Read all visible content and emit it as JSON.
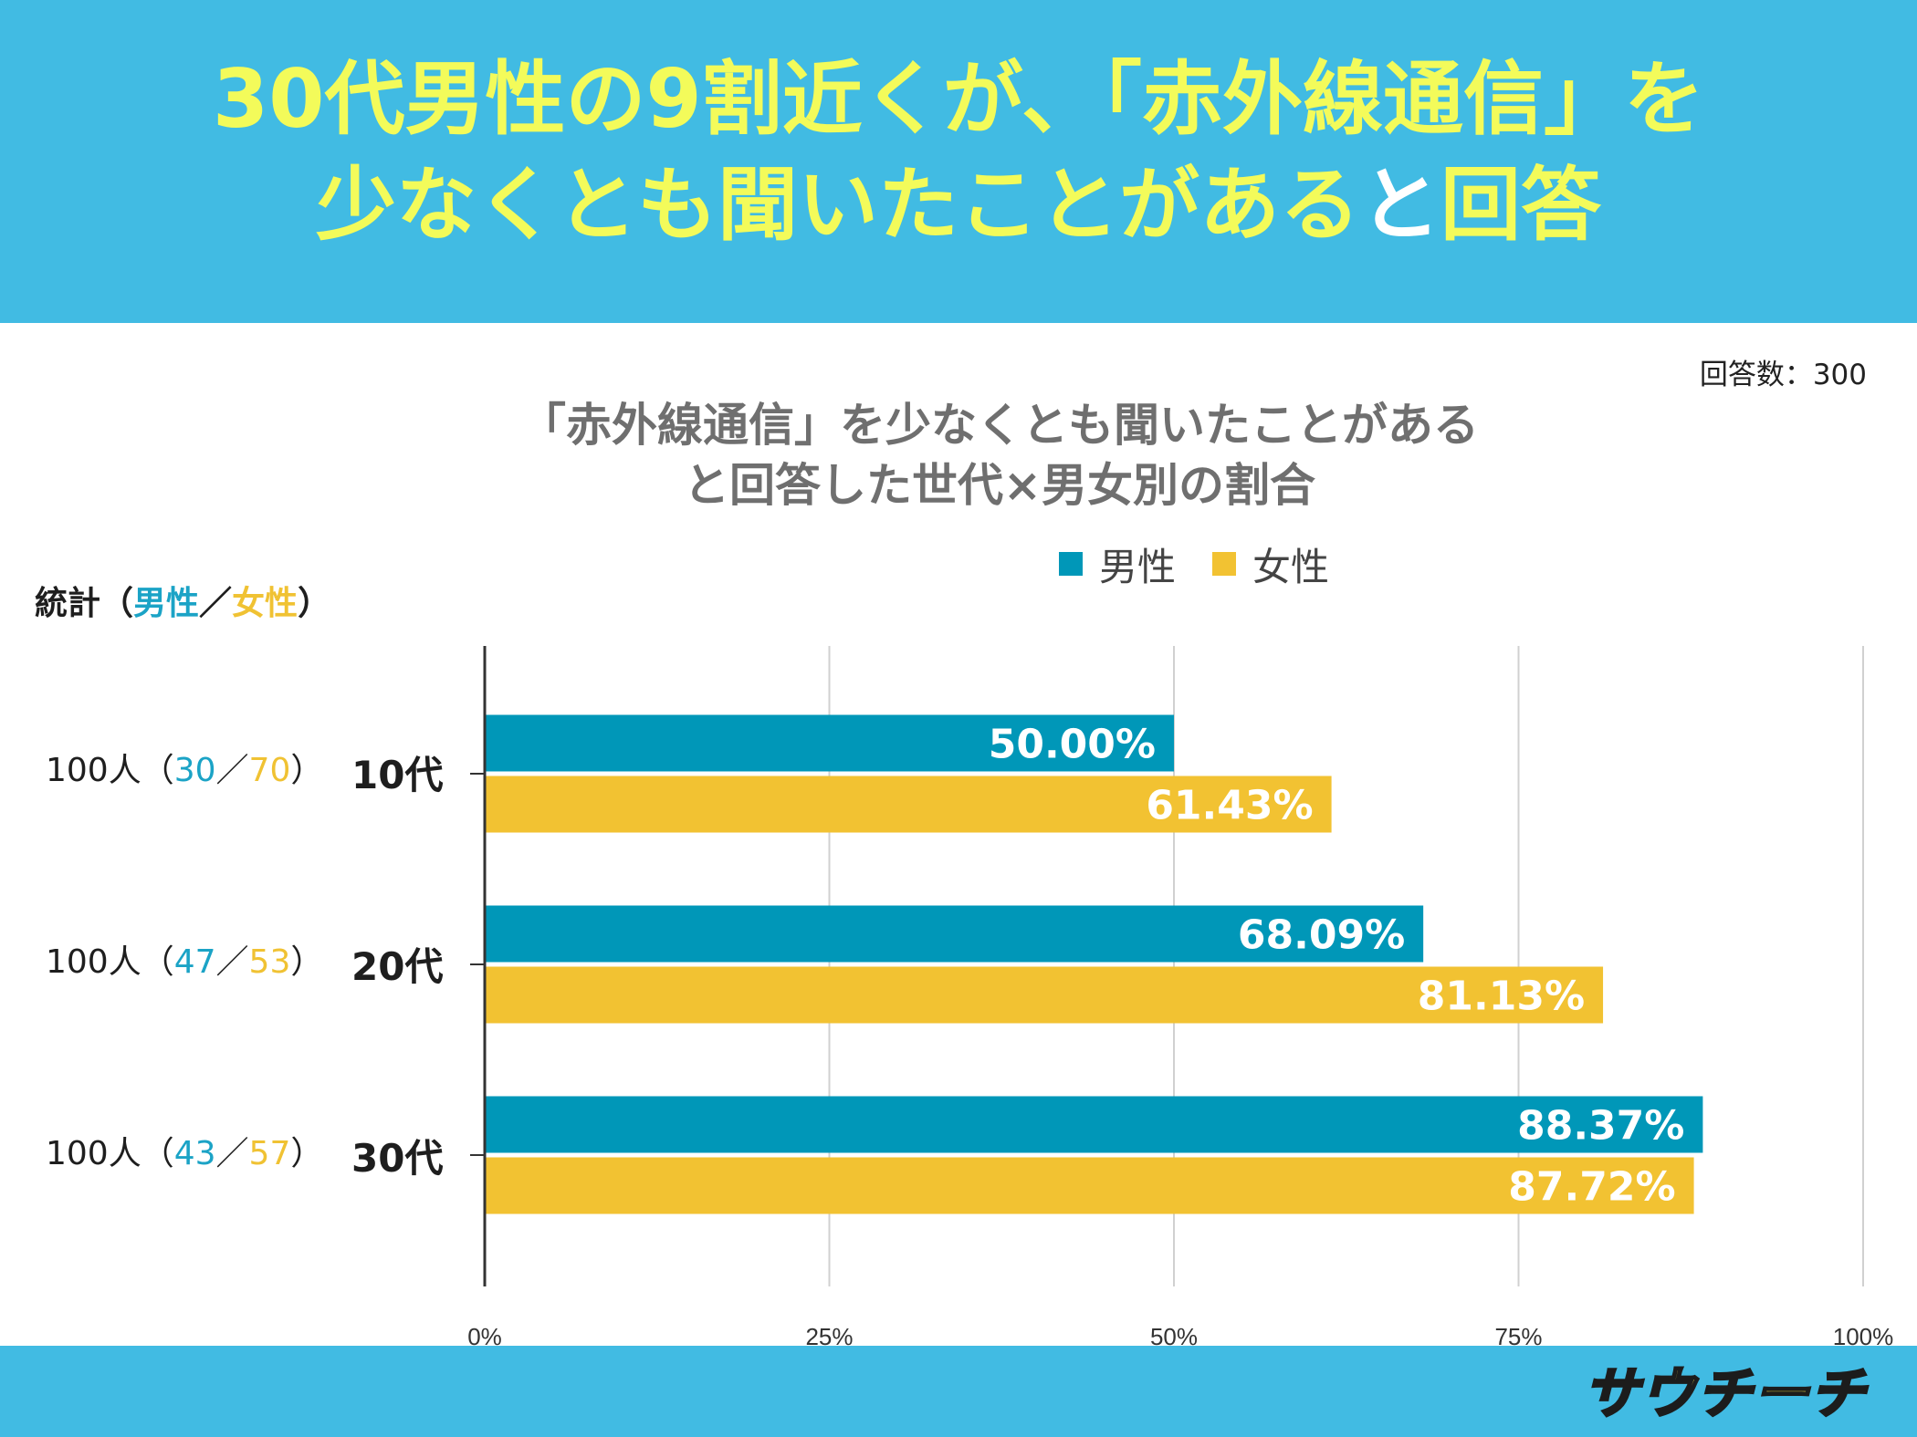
{
  "header": {
    "line1": "30代男性の9割近くが、「赤外線通信」を",
    "line2_yellow": "少なくとも聞いたことがある",
    "line2_white_1": "と",
    "line2_yellow_2": "回答"
  },
  "respondents": "回答数：300",
  "stats": {
    "head_prefix": "統計（",
    "head_male": "男性",
    "head_slash": "／",
    "head_female": "女性",
    "head_suffix": "）",
    "rows": [
      {
        "total": "100人（",
        "male": "30",
        "slash": "／",
        "female": "70",
        "close": "）"
      },
      {
        "total": "100人（",
        "male": "47",
        "slash": "／",
        "female": "53",
        "close": "）"
      },
      {
        "total": "100人（",
        "male": "43",
        "slash": "／",
        "female": "57",
        "close": "）"
      }
    ]
  },
  "colors": {
    "male": "#0097b8",
    "female": "#f2c232",
    "header_bg": "#41bbe3",
    "headline": "#f3fb5a"
  },
  "logo": "サウチーチ",
  "chart_data": {
    "type": "bar",
    "orientation": "horizontal",
    "title_line1": "「赤外線通信」を少なくとも聞いたことがある",
    "title_line2": "と回答した世代×男女別の割合",
    "categories": [
      "10代",
      "20代",
      "30代"
    ],
    "series": [
      {
        "name": "男性",
        "values": [
          50.0,
          68.09,
          88.37
        ],
        "labels": [
          "50.00%",
          "68.09%",
          "88.37%"
        ]
      },
      {
        "name": "女性",
        "values": [
          61.43,
          81.13,
          87.72
        ],
        "labels": [
          "61.43%",
          "81.13%",
          "87.72%"
        ]
      }
    ],
    "xlim": [
      0,
      100
    ],
    "xticks": [
      "0%",
      "25%",
      "50%",
      "75%",
      "100%"
    ],
    "grid": true,
    "legend": "top"
  }
}
